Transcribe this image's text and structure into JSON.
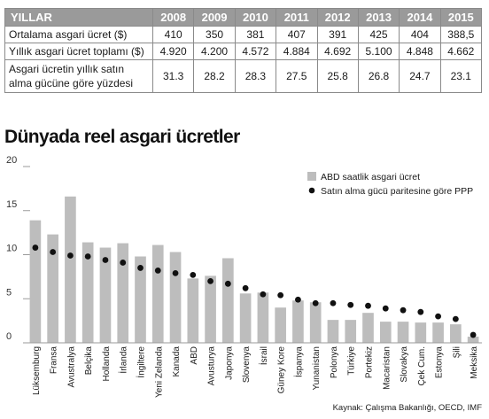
{
  "table": {
    "header": [
      "YILLAR",
      "2008",
      "2009",
      "2010",
      "2011",
      "2012",
      "2013",
      "2014",
      "2015"
    ],
    "rows": [
      {
        "label": "Ortalama asgari ücret ($)",
        "values": [
          "410",
          "350",
          "381",
          "407",
          "391",
          "425",
          "404",
          "388,5"
        ]
      },
      {
        "label": "Yıllık asgari ücret toplamı ($)",
        "values": [
          "4.920",
          "4.200",
          "4.572",
          "4.884",
          "4.692",
          "5.100",
          "4.848",
          "4.662"
        ]
      },
      {
        "label": "Asgari ücretin yıllık satın alma gücüne göre yüzdesi",
        "values": [
          "31.3",
          "28.2",
          "28.3",
          "27.5",
          "25.8",
          "26.8",
          "24.7",
          "23.1"
        ]
      }
    ]
  },
  "chart_title": "Dünyada reel asgari ücretler",
  "source": "Kaynak: Çalışma Bakanlığı, OECD, IMF",
  "colors": {
    "bar": "#bdbdbd",
    "dot": "#111111",
    "axis": "#9a9a9a"
  },
  "chart_data": {
    "type": "bar",
    "categories": [
      "Lüksemburg",
      "Fransa",
      "Avustralya",
      "Belçika",
      "Hollanda",
      "İrlanda",
      "İngiltere",
      "Yeni Zelanda",
      "Kanada",
      "ABD",
      "Avusturya",
      "Japonya",
      "Slovenya",
      "İsrail",
      "Güney Kore",
      "İspanya",
      "Yunanistan",
      "Polonya",
      "Türkiye",
      "Portekiz",
      "Macaristan",
      "Slovakya",
      "Çek Cum.",
      "Estonya",
      "Şili",
      "Meksika"
    ],
    "series": [
      {
        "name": "ABD saatlik asgari ücret",
        "type": "bar",
        "values": [
          13.9,
          12.3,
          16.6,
          11.4,
          10.8,
          11.3,
          9.8,
          11.1,
          10.3,
          7.3,
          7.6,
          9.6,
          5.6,
          5.7,
          4.0,
          4.8,
          4.6,
          2.6,
          2.6,
          3.4,
          2.4,
          2.4,
          2.3,
          2.3,
          2.1,
          0.7
        ]
      },
      {
        "name": "Satın alma gücü paritesine göre PPP",
        "type": "scatter",
        "values": [
          10.8,
          10.3,
          9.9,
          9.8,
          9.4,
          9.1,
          8.5,
          8.2,
          7.9,
          7.7,
          7.0,
          6.7,
          6.2,
          5.5,
          5.4,
          4.9,
          4.5,
          4.5,
          4.3,
          4.2,
          3.9,
          3.7,
          3.5,
          3.0,
          2.7,
          0.9
        ]
      }
    ],
    "yticks": [
      0,
      5,
      10,
      15,
      20
    ],
    "ylim": [
      0,
      20
    ],
    "grid": false,
    "legend_placement": "top-right"
  }
}
